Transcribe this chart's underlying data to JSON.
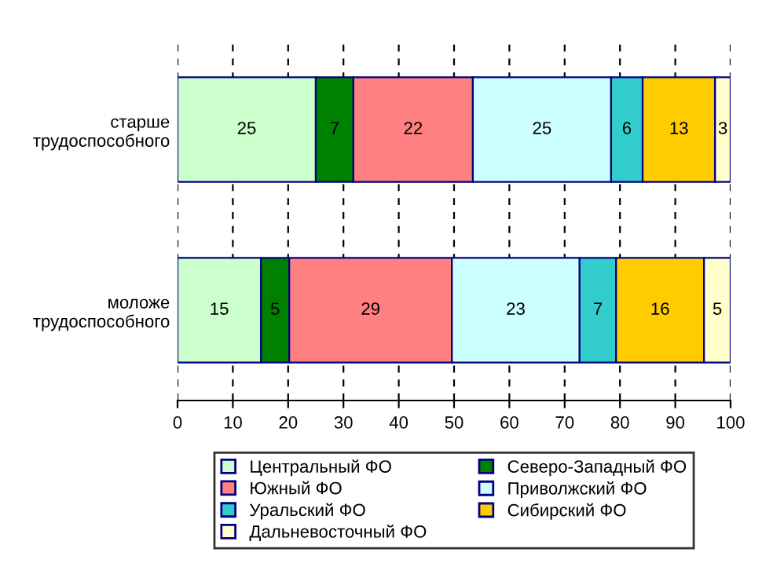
{
  "chart_data": {
    "type": "bar",
    "orientation": "horizontal",
    "stacked": true,
    "categories": [
      "старше\nтрудоспособного",
      "моложе\nтрудоспособного"
    ],
    "series": [
      {
        "name": "Центральный ФО",
        "color": "#ccffcc",
        "values": [
          25,
          15.1
        ],
        "value_labels": [
          "25",
          "15"
        ]
      },
      {
        "name": "Северо-Западный ФО",
        "color": "#008000",
        "values": [
          6.8,
          5.1
        ],
        "value_labels": [
          "7",
          "5"
        ]
      },
      {
        "name": "Южный ФО",
        "color": "#ff8080",
        "values": [
          21.6,
          29.4
        ],
        "value_labels": [
          "22",
          "29"
        ]
      },
      {
        "name": "Приволжский ФО",
        "color": "#ccffff",
        "values": [
          25,
          23.1
        ],
        "value_labels": [
          "25",
          "23"
        ]
      },
      {
        "name": "Уральский ФО",
        "color": "#33cccc",
        "values": [
          5.7,
          6.6
        ],
        "value_labels": [
          "6",
          "7"
        ]
      },
      {
        "name": "Сибирский ФО",
        "color": "#ffcc00",
        "values": [
          13.1,
          15.9
        ],
        "value_labels": [
          "13",
          "16"
        ]
      },
      {
        "name": "Дальневосточный ФО",
        "color": "#ffffcc",
        "values": [
          2.8,
          4.8
        ],
        "value_labels": [
          "3",
          "5"
        ]
      }
    ],
    "xlim": [
      0,
      100
    ],
    "xticks": [
      0,
      10,
      20,
      30,
      40,
      50,
      60,
      70,
      80,
      90,
      100
    ],
    "grid": "x",
    "legend": "bottom"
  }
}
